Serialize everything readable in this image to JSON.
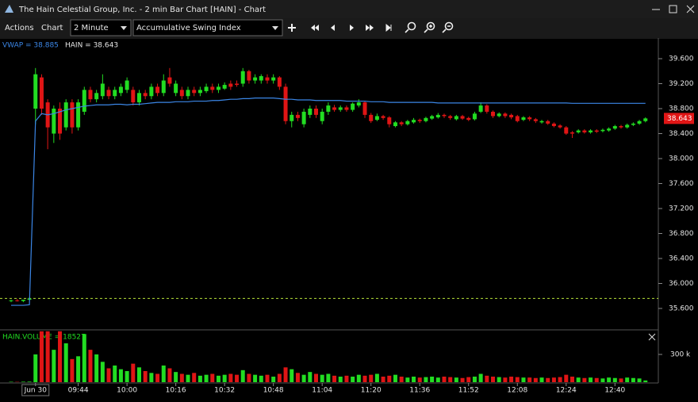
{
  "window": {
    "title": "The Hain Celestial Group, Inc. - 2 min Bar Chart [HAIN] - Chart"
  },
  "toolbar": {
    "menus": [
      "Actions",
      "Chart"
    ],
    "interval": "2 Minute",
    "study": "Accumulative Swing Index"
  },
  "chart_data": {
    "type": "candlestick",
    "legend": [
      "VWAP = 38.885",
      "HAIN = 38.643"
    ],
    "up_color": "#22dd22",
    "down_color": "#e01515",
    "vwap_color": "#3b86e6",
    "ylim": [
      35.27,
      39.93
    ],
    "yticks": [
      {
        "value": 35.6,
        "label": "35.600"
      },
      {
        "value": 36,
        "label": "36.000"
      },
      {
        "value": 36.4,
        "label": "36.400"
      },
      {
        "value": 36.8,
        "label": "36.800"
      },
      {
        "value": 37.2,
        "label": "37.200"
      },
      {
        "value": 37.6,
        "label": "37.600"
      },
      {
        "value": 38,
        "label": "38.000"
      },
      {
        "value": 38.4,
        "label": "38.400"
      },
      {
        "value": 38.8,
        "label": "38.800"
      },
      {
        "value": 39.2,
        "label": "39.200"
      },
      {
        "value": 39.6,
        "label": "39.600"
      }
    ],
    "last_price": 38.643,
    "reference_level": 35.76,
    "xticks": [
      {
        "value": 4,
        "label": "Jun 30"
      },
      {
        "value": 11,
        "label": "09:44"
      },
      {
        "value": 19,
        "label": "10:00"
      },
      {
        "value": 27,
        "label": "10:16"
      },
      {
        "value": 35,
        "label": "10:32"
      },
      {
        "value": 43,
        "label": "10:48"
      },
      {
        "value": 51,
        "label": "11:04"
      },
      {
        "value": 59,
        "label": "11:20"
      },
      {
        "value": 67,
        "label": "11:36"
      },
      {
        "value": 75,
        "label": "11:52"
      },
      {
        "value": 83,
        "label": "12:08"
      },
      {
        "value": 91,
        "label": "12:24"
      },
      {
        "value": 99,
        "label": "12:40"
      }
    ],
    "ohlc": [
      [
        35.72,
        35.74,
        35.7,
        35.73
      ],
      [
        35.73,
        35.75,
        35.71,
        35.72
      ],
      [
        35.72,
        35.74,
        35.7,
        35.74
      ],
      [
        35.74,
        35.78,
        35.72,
        35.76
      ],
      [
        38.8,
        39.45,
        38.55,
        39.35
      ],
      [
        39.3,
        39.35,
        38.7,
        38.8
      ],
      [
        38.9,
        38.95,
        38.15,
        38.5
      ],
      [
        38.4,
        38.85,
        38.25,
        38.8
      ],
      [
        38.8,
        38.9,
        38.3,
        38.4
      ],
      [
        38.5,
        38.95,
        38.45,
        38.9
      ],
      [
        38.9,
        38.95,
        38.4,
        38.5
      ],
      [
        38.5,
        38.95,
        38.45,
        38.9
      ],
      [
        38.75,
        39.15,
        38.7,
        39.1
      ],
      [
        39.1,
        39.15,
        38.9,
        38.95
      ],
      [
        38.95,
        39.1,
        38.9,
        39.05
      ],
      [
        39.0,
        39.35,
        38.95,
        39.2
      ],
      [
        39.1,
        39.15,
        38.95,
        39.0
      ],
      [
        39.0,
        39.15,
        38.95,
        39.1
      ],
      [
        39.05,
        39.2,
        39.0,
        39.15
      ],
      [
        39.1,
        39.3,
        39.05,
        39.25
      ],
      [
        39.1,
        39.15,
        38.85,
        38.9
      ],
      [
        38.9,
        39.1,
        38.85,
        39.05
      ],
      [
        39.05,
        39.1,
        38.95,
        39.0
      ],
      [
        39.0,
        39.2,
        38.95,
        39.15
      ],
      [
        39.15,
        39.2,
        39.0,
        39.05
      ],
      [
        39.05,
        39.35,
        39.0,
        39.25
      ],
      [
        39.3,
        39.45,
        39.15,
        39.2
      ],
      [
        39.05,
        39.25,
        39.0,
        39.2
      ],
      [
        39.1,
        39.15,
        38.95,
        39.0
      ],
      [
        39.0,
        39.15,
        38.95,
        39.1
      ],
      [
        39.1,
        39.15,
        39.0,
        39.05
      ],
      [
        39.05,
        39.15,
        39.0,
        39.1
      ],
      [
        39.08,
        39.2,
        39.05,
        39.15
      ],
      [
        39.15,
        39.2,
        39.05,
        39.1
      ],
      [
        39.1,
        39.2,
        39.05,
        39.15
      ],
      [
        39.12,
        39.22,
        39.1,
        39.18
      ],
      [
        39.2,
        39.25,
        39.1,
        39.15
      ],
      [
        39.2,
        39.25,
        39.15,
        39.18
      ],
      [
        39.2,
        39.45,
        39.15,
        39.4
      ],
      [
        39.4,
        39.42,
        39.2,
        39.25
      ],
      [
        39.25,
        39.35,
        39.2,
        39.3
      ],
      [
        39.25,
        39.35,
        39.2,
        39.32
      ],
      [
        39.3,
        39.35,
        39.2,
        39.25
      ],
      [
        39.25,
        39.35,
        39.2,
        39.3
      ],
      [
        39.3,
        39.32,
        39.1,
        39.15
      ],
      [
        39.15,
        39.2,
        38.55,
        38.6
      ],
      [
        38.6,
        38.75,
        38.5,
        38.7
      ],
      [
        38.7,
        38.75,
        38.6,
        38.65
      ],
      [
        38.55,
        38.8,
        38.5,
        38.75
      ],
      [
        38.7,
        38.85,
        38.65,
        38.8
      ],
      [
        38.8,
        38.85,
        38.65,
        38.7
      ],
      [
        38.6,
        38.8,
        38.55,
        38.75
      ],
      [
        38.75,
        38.9,
        38.7,
        38.85
      ],
      [
        38.82,
        38.86,
        38.75,
        38.78
      ],
      [
        38.78,
        38.85,
        38.75,
        38.82
      ],
      [
        38.82,
        38.85,
        38.75,
        38.78
      ],
      [
        38.78,
        38.9,
        38.75,
        38.88
      ],
      [
        38.85,
        38.95,
        38.82,
        38.9
      ],
      [
        38.9,
        38.92,
        38.65,
        38.7
      ],
      [
        38.7,
        38.73,
        38.57,
        38.6
      ],
      [
        38.62,
        38.72,
        38.6,
        38.68
      ],
      [
        38.68,
        38.7,
        38.62,
        38.65
      ],
      [
        38.66,
        38.68,
        38.5,
        38.55
      ],
      [
        38.52,
        38.6,
        38.5,
        38.58
      ],
      [
        38.58,
        38.6,
        38.52,
        38.55
      ],
      [
        38.55,
        38.62,
        38.53,
        38.6
      ],
      [
        38.58,
        38.65,
        38.56,
        38.62
      ],
      [
        38.62,
        38.64,
        38.57,
        38.6
      ],
      [
        38.6,
        38.67,
        38.58,
        38.65
      ],
      [
        38.64,
        38.7,
        38.62,
        38.68
      ],
      [
        38.66,
        38.73,
        38.64,
        38.7
      ],
      [
        38.7,
        38.72,
        38.65,
        38.68
      ],
      [
        38.68,
        38.7,
        38.62,
        38.65
      ],
      [
        38.63,
        38.7,
        38.61,
        38.68
      ],
      [
        38.68,
        38.7,
        38.62,
        38.64
      ],
      [
        38.65,
        38.67,
        38.6,
        38.62
      ],
      [
        38.63,
        38.75,
        38.61,
        38.72
      ],
      [
        38.75,
        38.9,
        38.73,
        38.85
      ],
      [
        38.85,
        38.87,
        38.72,
        38.75
      ],
      [
        38.75,
        38.77,
        38.65,
        38.68
      ],
      [
        38.68,
        38.74,
        38.66,
        38.72
      ],
      [
        38.72,
        38.74,
        38.65,
        38.68
      ],
      [
        38.7,
        38.72,
        38.63,
        38.66
      ],
      [
        38.68,
        38.7,
        38.58,
        38.6
      ],
      [
        38.62,
        38.68,
        38.6,
        38.66
      ],
      [
        38.66,
        38.68,
        38.6,
        38.63
      ],
      [
        38.63,
        38.65,
        38.57,
        38.6
      ],
      [
        38.58,
        38.62,
        38.56,
        38.6
      ],
      [
        38.6,
        38.62,
        38.54,
        38.56
      ],
      [
        38.56,
        38.58,
        38.5,
        38.52
      ],
      [
        38.53,
        38.55,
        38.48,
        38.5
      ],
      [
        38.5,
        38.52,
        38.38,
        38.4
      ],
      [
        38.42,
        38.44,
        38.33,
        38.4
      ],
      [
        38.42,
        38.47,
        38.4,
        38.45
      ],
      [
        38.45,
        38.47,
        38.4,
        38.42
      ],
      [
        38.42,
        38.47,
        38.4,
        38.45
      ],
      [
        38.45,
        38.47,
        38.41,
        38.43
      ],
      [
        38.44,
        38.48,
        38.42,
        38.46
      ],
      [
        38.45,
        38.5,
        38.43,
        38.48
      ],
      [
        38.48,
        38.54,
        38.46,
        38.52
      ],
      [
        38.52,
        38.54,
        38.48,
        38.5
      ],
      [
        38.5,
        38.56,
        38.48,
        38.54
      ],
      [
        38.54,
        38.58,
        38.52,
        38.56
      ],
      [
        38.56,
        38.62,
        38.54,
        38.6
      ],
      [
        38.6,
        38.66,
        38.58,
        38.643
      ]
    ],
    "vwap": [
      35.65,
      35.65,
      35.65,
      35.66,
      38.6,
      38.72,
      38.7,
      38.72,
      38.75,
      38.78,
      38.8,
      38.82,
      38.84,
      38.85,
      38.86,
      38.86,
      38.86,
      38.87,
      38.87,
      38.86,
      38.87,
      38.87,
      38.88,
      38.89,
      38.9,
      38.9,
      38.9,
      38.91,
      38.91,
      38.91,
      38.92,
      38.92,
      38.92,
      38.93,
      38.93,
      38.94,
      38.95,
      38.95,
      38.96,
      38.96,
      38.97,
      38.97,
      38.97,
      38.97,
      38.96,
      38.95,
      38.95,
      38.94,
      38.94,
      38.94,
      38.93,
      38.93,
      38.93,
      38.93,
      38.93,
      38.92,
      38.92,
      38.92,
      38.92,
      38.91,
      38.91,
      38.91,
      38.9,
      38.9,
      38.9,
      38.9,
      38.9,
      38.9,
      38.9,
      38.9,
      38.89,
      38.89,
      38.89,
      38.89,
      38.89,
      38.89,
      38.89,
      38.89,
      38.89,
      38.89,
      38.89,
      38.89,
      38.89,
      38.89,
      38.89,
      38.89,
      38.89,
      38.89,
      38.89,
      38.89,
      38.89,
      38.89,
      38.885,
      38.885,
      38.885,
      38.885,
      38.885,
      38.885,
      38.885,
      38.885,
      38.885,
      38.885,
      38.885,
      38.885,
      38.885
    ],
    "volume": {
      "label": "HAIN.VOLUME = 18527",
      "ylim": [
        0,
        557000
      ],
      "yticks": [
        {
          "value": 300000,
          "label": "300 k"
        }
      ],
      "values": [
        4000,
        3000,
        5000,
        6000,
        300000,
        550000,
        550000,
        350000,
        550000,
        420000,
        250000,
        280000,
        520000,
        350000,
        300000,
        220000,
        150000,
        180000,
        140000,
        120000,
        200000,
        160000,
        120000,
        100000,
        90000,
        180000,
        150000,
        110000,
        90000,
        80000,
        100000,
        70000,
        80000,
        90000,
        70000,
        80000,
        90000,
        80000,
        130000,
        90000,
        80000,
        70000,
        80000,
        60000,
        90000,
        160000,
        140000,
        100000,
        80000,
        110000,
        90000,
        80000,
        90000,
        70000,
        60000,
        70000,
        60000,
        80000,
        70000,
        80000,
        90000,
        60000,
        70000,
        80000,
        60000,
        50000,
        60000,
        50000,
        55000,
        60000,
        50000,
        60000,
        55000,
        50000,
        45000,
        55000,
        60000,
        90000,
        70000,
        60000,
        55000,
        50000,
        60000,
        55000,
        50000,
        50000,
        45000,
        50000,
        45000,
        50000,
        55000,
        80000,
        60000,
        50000,
        45000,
        50000,
        45000,
        40000,
        50000,
        45000,
        40000,
        50000,
        45000,
        40000,
        18527
      ]
    }
  }
}
